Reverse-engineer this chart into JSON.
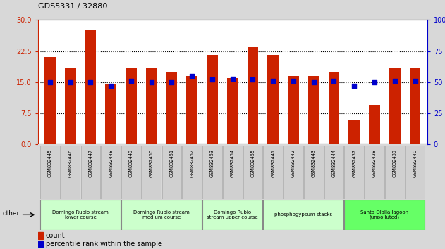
{
  "title": "GDS5331 / 32880",
  "samples": [
    "GSM832445",
    "GSM832446",
    "GSM832447",
    "GSM832448",
    "GSM832449",
    "GSM832450",
    "GSM832451",
    "GSM832452",
    "GSM832453",
    "GSM832454",
    "GSM832455",
    "GSM832441",
    "GSM832442",
    "GSM832443",
    "GSM832444",
    "GSM832437",
    "GSM832438",
    "GSM832439",
    "GSM832440"
  ],
  "counts": [
    21.0,
    18.5,
    27.5,
    14.5,
    18.5,
    18.5,
    17.5,
    16.5,
    21.5,
    16.0,
    23.5,
    21.5,
    16.5,
    16.5,
    17.5,
    6.0,
    9.5,
    18.5,
    18.5
  ],
  "percentiles": [
    50,
    50,
    50,
    47,
    51,
    50,
    50,
    55,
    52,
    53,
    52,
    51,
    51,
    50,
    51,
    47,
    50,
    51,
    51
  ],
  "groups": [
    {
      "label": "Domingo Rubio stream\nlower course",
      "start": 0,
      "end": 4,
      "color": "#ccffcc"
    },
    {
      "label": "Domingo Rubio stream\nmedium course",
      "start": 4,
      "end": 8,
      "color": "#ccffcc"
    },
    {
      "label": "Domingo Rubio\nstream upper course",
      "start": 8,
      "end": 11,
      "color": "#ccffcc"
    },
    {
      "label": "phosphogypsum stacks",
      "start": 11,
      "end": 15,
      "color": "#ccffcc"
    },
    {
      "label": "Santa Olalla lagoon\n(unpolluted)",
      "start": 15,
      "end": 19,
      "color": "#66ff66"
    }
  ],
  "ylim_left": [
    0,
    30
  ],
  "ylim_right": [
    0,
    100
  ],
  "yticks_left": [
    0,
    7.5,
    15,
    22.5,
    30
  ],
  "yticks_right": [
    0,
    25,
    50,
    75,
    100
  ],
  "bar_color": "#cc2200",
  "dot_color": "#0000cc",
  "bg_color": "#d8d8d8",
  "plot_bg": "#ffffff",
  "left_axis_color": "#cc2200",
  "right_axis_color": "#0000cc",
  "legend_count_label": "count",
  "legend_pct_label": "percentile rank within the sample",
  "other_label": "other"
}
